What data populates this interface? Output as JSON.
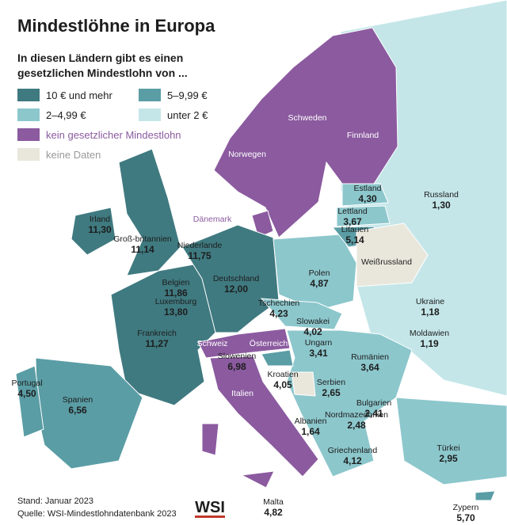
{
  "title": "Mindestlöhne in Europa",
  "subtitle": [
    "In diesen Ländern gibt es einen",
    "gesetzlichen Mindestlohn von ..."
  ],
  "legend": [
    "10 € und mehr",
    "5–9,99 €",
    "2–4,99 €",
    "unter 2 €",
    "kein gesetzlicher Mindestlohn",
    "keine Daten"
  ],
  "countries": [
    {
      "name": "Irland",
      "value": "11,30"
    },
    {
      "name": "Groß-britannien",
      "value": "11,14"
    },
    {
      "name": "Niederlande",
      "value": "11,75"
    },
    {
      "name": "Belgien",
      "value": "11,86"
    },
    {
      "name": "Luxemburg",
      "value": "13,80"
    },
    {
      "name": "Deutschland",
      "value": "12,00"
    },
    {
      "name": "Frankreich",
      "value": "11,27"
    },
    {
      "name": "Portugal",
      "value": "4,50"
    },
    {
      "name": "Spanien",
      "value": "6,56"
    },
    {
      "name": "Polen",
      "value": "4,87"
    },
    {
      "name": "Tschechien",
      "value": "4,23"
    },
    {
      "name": "Slowakei",
      "value": "4,02"
    },
    {
      "name": "Ungarn",
      "value": "3,41"
    },
    {
      "name": "Slowenien",
      "value": "6,98"
    },
    {
      "name": "Kroatien",
      "value": "4,05"
    },
    {
      "name": "Serbien",
      "value": "2,65"
    },
    {
      "name": "Rumänien",
      "value": "3,64"
    },
    {
      "name": "Bulgarien",
      "value": "2,41"
    },
    {
      "name": "Nordmazedonien",
      "value": "2,48"
    },
    {
      "name": "Albanien",
      "value": "1,64"
    },
    {
      "name": "Griechenland",
      "value": "4,12"
    },
    {
      "name": "Türkei",
      "value": "2,95"
    },
    {
      "name": "Zypern",
      "value": "5,70"
    },
    {
      "name": "Malta",
      "value": "4,82"
    },
    {
      "name": "Estland",
      "value": "4,30"
    },
    {
      "name": "Lettland",
      "value": "3,67"
    },
    {
      "name": "Litauen",
      "value": "5,14"
    },
    {
      "name": "Russland",
      "value": "1,30"
    },
    {
      "name": "Ukraine",
      "value": "1,18"
    },
    {
      "name": "Moldawien",
      "value": "1,19"
    },
    {
      "name": "Dänemark"
    },
    {
      "name": "Norwegen"
    },
    {
      "name": "Schweden"
    },
    {
      "name": "Finnland"
    },
    {
      "name": "Weißrussland"
    },
    {
      "name": "Schweiz"
    },
    {
      "name": "Österreich"
    },
    {
      "name": "Italien"
    }
  ],
  "footer": {
    "date": "Stand: Januar 2023",
    "source": "Quelle: WSI-Mindestlohndatenbank 2023",
    "logo": "WSI"
  }
}
